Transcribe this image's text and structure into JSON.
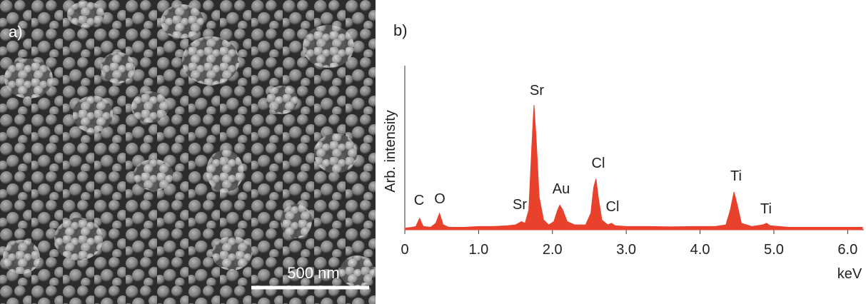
{
  "panel_a": {
    "label": "a)",
    "scale_bar_label": "500 nm"
  },
  "chart_data": {
    "type": "area",
    "panel_label": "b)",
    "ylabel": "Arb. intensity",
    "xlabel": "keV",
    "color": "#e8412c",
    "x": [
      0,
      0.1,
      0.15,
      0.2,
      0.25,
      0.35,
      0.42,
      0.47,
      0.52,
      0.6,
      0.8,
      1.0,
      1.2,
      1.4,
      1.5,
      1.58,
      1.63,
      1.68,
      1.72,
      1.75,
      1.78,
      1.82,
      1.88,
      1.95,
      2.02,
      2.07,
      2.1,
      2.14,
      2.2,
      2.3,
      2.45,
      2.52,
      2.56,
      2.59,
      2.62,
      2.67,
      2.75,
      2.8,
      2.85,
      3.0,
      3.3,
      3.6,
      3.9,
      4.2,
      4.35,
      4.41,
      4.46,
      4.51,
      4.56,
      4.7,
      4.85,
      4.9,
      4.95,
      5.2,
      5.6,
      6.0,
      6.2
    ],
    "values": [
      1,
      1.5,
      2,
      7,
      2,
      1.5,
      4,
      10,
      3,
      1.5,
      1.5,
      2,
      2,
      2.5,
      3,
      5,
      4,
      12,
      50,
      76,
      55,
      20,
      6,
      3,
      5,
      12,
      15,
      12,
      5,
      3,
      3,
      10,
      26,
      31,
      20,
      6,
      3,
      4,
      2.5,
      2,
      2,
      1.8,
      2,
      2,
      3,
      12,
      23,
      14,
      4,
      2,
      3,
      4,
      2.5,
      1.5,
      1.5,
      1.5,
      1.5
    ],
    "annotations": [
      "C",
      "O",
      "Sr",
      "Sr",
      "Au",
      "Cl",
      "Cl",
      "Ti",
      "Ti"
    ],
    "xlim": [
      0,
      6.2
    ],
    "ylim": [
      0,
      100
    ],
    "xticks": [
      0,
      {
        "value": 1,
        "label": "1.0"
      },
      {
        "value": 2,
        "label": "2.0"
      },
      {
        "value": 3,
        "label": "3.0"
      },
      {
        "value": 4,
        "label": "4.0"
      },
      {
        "value": 5,
        "label": "5.0"
      },
      {
        "value": 6,
        "label": "6.0"
      }
    ]
  }
}
